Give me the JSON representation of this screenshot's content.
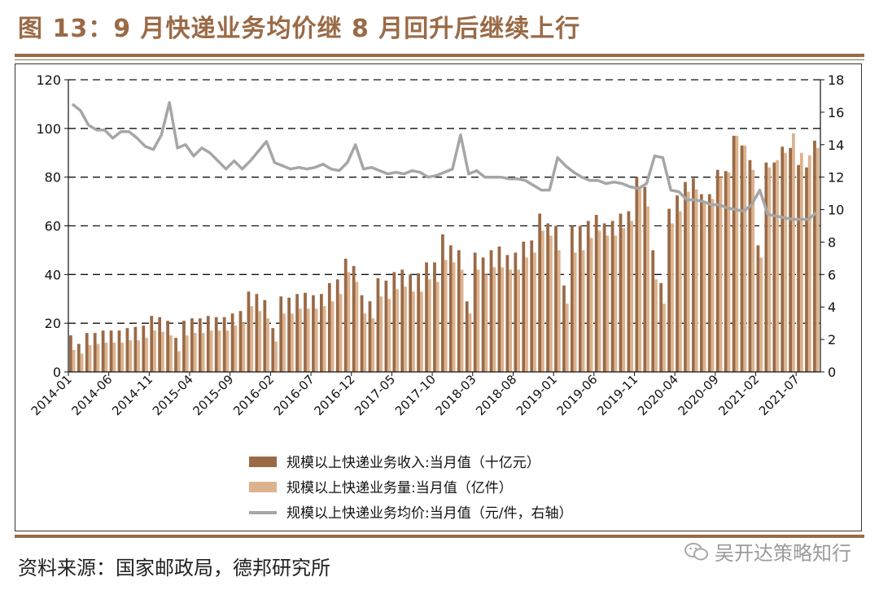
{
  "title": "图 13：9 月快递业务均价继 8 月回升后继续上行",
  "source": "资料来源：国家邮政局，德邦研究所",
  "watermark": "吴开达策略知行",
  "colors": {
    "revenue": "#9a6a46",
    "volume": "#dcb38f",
    "price": "#a6a6a6",
    "accent": "#9a6a46"
  },
  "chart_data": {
    "type": "bar",
    "left_axis": {
      "ylim": [
        0,
        120
      ],
      "ticks": [
        "0",
        "20",
        "40",
        "60",
        "80",
        "100",
        "120"
      ]
    },
    "right_axis": {
      "ylim": [
        0,
        18
      ],
      "ticks": [
        "0",
        "2",
        "4",
        "6",
        "8",
        "10",
        "12",
        "14",
        "16",
        "18"
      ]
    },
    "grid": "dashed horizontal",
    "legend_position": "bottom-center",
    "x_tick_labels": [
      "2014-01",
      "2014-06",
      "2014-11",
      "2015-04",
      "2015-09",
      "2016-02",
      "2016-07",
      "2016-12",
      "2017-05",
      "2017-10",
      "2018-03",
      "2018-08",
      "2019-01",
      "2019-06",
      "2019-11",
      "2020-04",
      "2020-09",
      "2021-02",
      "2021-07"
    ],
    "months": [
      "2014-01",
      "2014-02",
      "2014-03",
      "2014-04",
      "2014-05",
      "2014-06",
      "2014-07",
      "2014-08",
      "2014-09",
      "2014-10",
      "2014-11",
      "2014-12",
      "2015-01",
      "2015-02",
      "2015-03",
      "2015-04",
      "2015-05",
      "2015-06",
      "2015-07",
      "2015-08",
      "2015-09",
      "2015-10",
      "2015-11",
      "2015-12",
      "2016-01",
      "2016-02",
      "2016-03",
      "2016-04",
      "2016-05",
      "2016-06",
      "2016-07",
      "2016-08",
      "2016-09",
      "2016-10",
      "2016-11",
      "2016-12",
      "2017-01",
      "2017-02",
      "2017-03",
      "2017-04",
      "2017-05",
      "2017-06",
      "2017-07",
      "2017-08",
      "2017-09",
      "2017-10",
      "2017-11",
      "2017-12",
      "2018-01",
      "2018-02",
      "2018-03",
      "2018-04",
      "2018-05",
      "2018-06",
      "2018-07",
      "2018-08",
      "2018-09",
      "2018-10",
      "2018-11",
      "2018-12",
      "2019-01",
      "2019-02",
      "2019-03",
      "2019-04",
      "2019-05",
      "2019-06",
      "2019-07",
      "2019-08",
      "2019-09",
      "2019-10",
      "2019-11",
      "2019-12",
      "2020-01",
      "2020-02",
      "2020-03",
      "2020-04",
      "2020-05",
      "2020-06",
      "2020-07",
      "2020-08",
      "2020-09",
      "2020-10",
      "2020-11",
      "2020-12",
      "2021-01",
      "2021-02",
      "2021-03",
      "2021-04",
      "2021-05",
      "2021-06",
      "2021-07",
      "2021-08",
      "2021-09"
    ],
    "series": [
      {
        "name": "规模以上快递业务收入:当月值（十亿元）",
        "type": "bar",
        "axis": "left",
        "values": [
          15,
          11.5,
          16,
          16,
          17,
          17,
          17,
          18,
          18.5,
          19,
          23,
          22.5,
          21,
          14,
          21,
          22,
          22,
          23,
          22.5,
          22.5,
          24,
          25,
          33,
          32,
          29.5,
          18,
          31,
          30.5,
          32,
          32.5,
          31.5,
          32,
          36.5,
          38,
          46.5,
          43.5,
          31.5,
          29,
          38.5,
          37.5,
          41,
          42,
          40,
          40.5,
          45,
          45,
          56.5,
          52,
          50,
          29,
          49,
          47,
          50,
          51.5,
          48,
          49,
          53.5,
          54,
          65,
          61,
          60,
          35.5,
          60,
          60,
          62,
          64.5,
          61,
          62,
          65,
          66,
          80,
          76,
          50,
          36.5,
          67,
          72.5,
          78,
          79.5,
          73,
          73,
          83,
          82.5,
          97,
          93,
          87,
          52,
          86,
          86,
          92.5,
          92,
          85,
          84,
          95
        ]
      },
      {
        "name": "规模以上快递业务量:当月值（亿件）",
        "type": "bar",
        "axis": "left",
        "values": [
          9,
          7.5,
          11,
          11.5,
          12,
          12,
          12,
          13,
          13,
          14,
          17,
          16.5,
          15,
          8.5,
          15,
          16,
          16,
          17,
          17,
          17,
          19,
          20,
          27,
          25,
          22,
          12.5,
          24,
          24,
          26,
          26,
          26,
          27,
          29,
          32,
          41,
          37,
          24,
          22,
          31,
          30,
          34,
          35,
          33,
          33,
          38,
          37,
          46,
          45,
          42,
          24,
          42,
          40,
          43,
          43,
          42,
          42,
          47,
          49,
          58,
          56,
          50,
          28,
          49,
          50,
          55,
          58,
          56,
          56,
          59,
          62,
          76,
          68,
          38,
          28,
          61,
          66,
          74,
          75,
          70,
          71,
          80,
          82,
          97,
          93,
          83,
          47,
          84,
          87,
          90,
          98,
          90,
          89,
          92
        ]
      },
      {
        "name": "规模以上快递业务均价:当月值（元/件，右轴）",
        "type": "line",
        "axis": "right",
        "values": [
          16.5,
          16.1,
          15.2,
          14.9,
          14.9,
          14.4,
          14.8,
          14.8,
          14.4,
          13.9,
          13.7,
          14.6,
          16.6,
          13.8,
          14,
          13.3,
          13.8,
          13.5,
          13,
          12.5,
          13,
          12.5,
          13,
          13.6,
          14.2,
          12.9,
          12.7,
          12.5,
          12.6,
          12.5,
          12.6,
          12.8,
          12.5,
          12.4,
          12.9,
          14,
          12.5,
          12.6,
          12.4,
          12.2,
          12.3,
          12.2,
          12.4,
          12.3,
          12,
          12.1,
          12.3,
          12.5,
          14.6,
          12.2,
          12.4,
          12.0,
          12.0,
          12.0,
          11.9,
          11.9,
          11.8,
          11.5,
          11.2,
          11.2,
          13.2,
          12.7,
          12.3,
          12.0,
          11.8,
          11.8,
          11.6,
          11.7,
          11.6,
          11.4,
          11.3,
          11.6,
          13.3,
          13.2,
          11.2,
          11.1,
          10.6,
          10.6,
          10.5,
          10.3,
          10.3,
          10.1,
          10.0,
          9.9,
          10.3,
          11.2,
          9.7,
          9.6,
          9.5,
          9.4,
          9.4,
          9.4,
          9.8
        ]
      }
    ]
  }
}
